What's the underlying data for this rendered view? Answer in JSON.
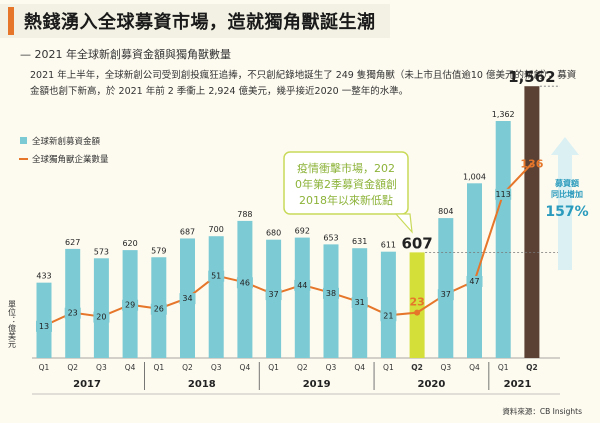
{
  "header": {
    "title": "熱錢湧入全球募資市場，造就獨角獸誕生潮",
    "subtitle": "— 2021 年全球新創募資金額與獨角獸數量",
    "intro": "2021 年上半年，全球新創公司受到創投瘋狂追捧，不只創紀錄地誕生了 249 隻獨角獸（未上市且估值逾10 億美元的新創），募資金額也創下新高，於 2021 年前 2 季衝上 2,924 億美元，幾乎接近2020 一整年的水準。"
  },
  "chart_data": {
    "type": "bar",
    "categories": [
      "Q1",
      "Q2",
      "Q3",
      "Q4",
      "Q1",
      "Q2",
      "Q3",
      "Q4",
      "Q1",
      "Q2",
      "Q3",
      "Q4",
      "Q1",
      "Q2",
      "Q3",
      "Q4",
      "Q1",
      "Q2"
    ],
    "years": [
      {
        "label": "2017"
      },
      {
        "label": "2018"
      },
      {
        "label": "2019"
      },
      {
        "label": "2020"
      },
      {
        "label": "2021"
      }
    ],
    "series": [
      {
        "name": "全球新創募資金額",
        "kind": "bar",
        "values": [
          433,
          627,
          573,
          620,
          579,
          687,
          700,
          788,
          680,
          692,
          653,
          631,
          611,
          607,
          804,
          1004,
          1362,
          1562
        ],
        "labels": [
          "433",
          "627",
          "573",
          "620",
          "579",
          "687",
          "700",
          "788",
          "680",
          "692",
          "653",
          "631",
          "611",
          "607",
          "804",
          "1,004",
          "1,362",
          "1,562"
        ]
      },
      {
        "name": "全球獨角獸企業數量",
        "kind": "line",
        "values": [
          13,
          23,
          20,
          29,
          26,
          34,
          51,
          46,
          37,
          44,
          38,
          31,
          21,
          23,
          37,
          47,
          113,
          136
        ]
      }
    ],
    "ylabel": "單位：億美元",
    "colors": {
      "bar": "#7ccad4",
      "bar_highlight_2020q2": "#d4df39",
      "bar_highlight_2021q2": "#5a4134",
      "line": "#e5762a"
    },
    "annotation": "疫情衝擊市場，2020年第2季募資金額創2018年以來新低點",
    "growth": {
      "label": "募資額同比增加",
      "value": "157%"
    }
  },
  "source": "資料來源：CB Insights"
}
